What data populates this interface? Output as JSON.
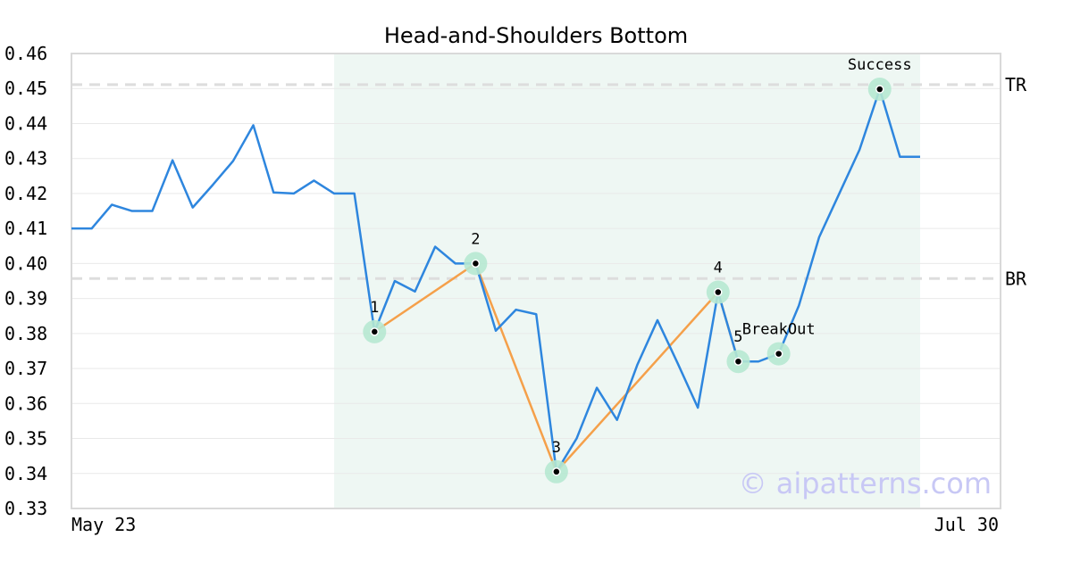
{
  "chart_data": {
    "type": "line",
    "title": "Head-and-Shoulders Bottom",
    "xlabel": "",
    "ylabel": "",
    "x_tick_labels": [
      "May 23",
      "Jul 30"
    ],
    "ylim": [
      0.33,
      0.46
    ],
    "y_ticks": [
      "0.33",
      "0.34",
      "0.35",
      "0.36",
      "0.37",
      "0.38",
      "0.39",
      "0.40",
      "0.41",
      "0.42",
      "0.43",
      "0.44",
      "0.45",
      "0.46"
    ],
    "grid": true,
    "series": [
      {
        "color": "#2e86de",
        "values": [
          0.41,
          0.41,
          0.4168,
          0.415,
          0.415,
          0.4295,
          0.416,
          0.4225,
          0.4293,
          0.4395,
          0.4203,
          0.42,
          0.4237,
          0.42,
          0.42,
          0.3805,
          0.395,
          0.392,
          0.4048,
          0.4,
          0.4,
          0.3808,
          0.3868,
          0.3855,
          0.3405,
          0.35,
          0.3645,
          0.3553,
          0.371,
          0.3838,
          0.3715,
          0.3588,
          0.3918,
          0.372,
          0.372,
          0.3742,
          0.388,
          0.4075,
          0.42,
          0.4325,
          0.4498,
          0.4305,
          0.4305
        ]
      }
    ],
    "highlight_range": {
      "start_index": 13,
      "end_index": 42
    },
    "reference_lines": [
      {
        "label": "TR",
        "value": 0.4511
      },
      {
        "label": "BR",
        "value": 0.3957
      }
    ],
    "pattern_points": [
      {
        "label": "1",
        "index": 15,
        "value": 0.3805
      },
      {
        "label": "2",
        "index": 20,
        "value": 0.4
      },
      {
        "label": "3",
        "index": 24,
        "value": 0.3405
      },
      {
        "label": "4",
        "index": 32,
        "value": 0.3918
      },
      {
        "label": "5",
        "index": 33,
        "value": 0.372
      },
      {
        "label": "BreakOut",
        "index": 35,
        "value": 0.3742
      },
      {
        "label": "Success",
        "index": 40,
        "value": 0.4498
      }
    ],
    "pattern_line_points": [
      "1",
      "2",
      "3",
      "4",
      "5"
    ],
    "colors": {
      "price": "#2e86de",
      "pattern": "#f5a04a",
      "highlight": "#eef7f3",
      "marker_halo": "#b6e8d2",
      "reference": "#dddddd",
      "grid": "#e9e9e9",
      "frame": "#d9d9d9"
    }
  },
  "watermark": "© aipatterns.com"
}
